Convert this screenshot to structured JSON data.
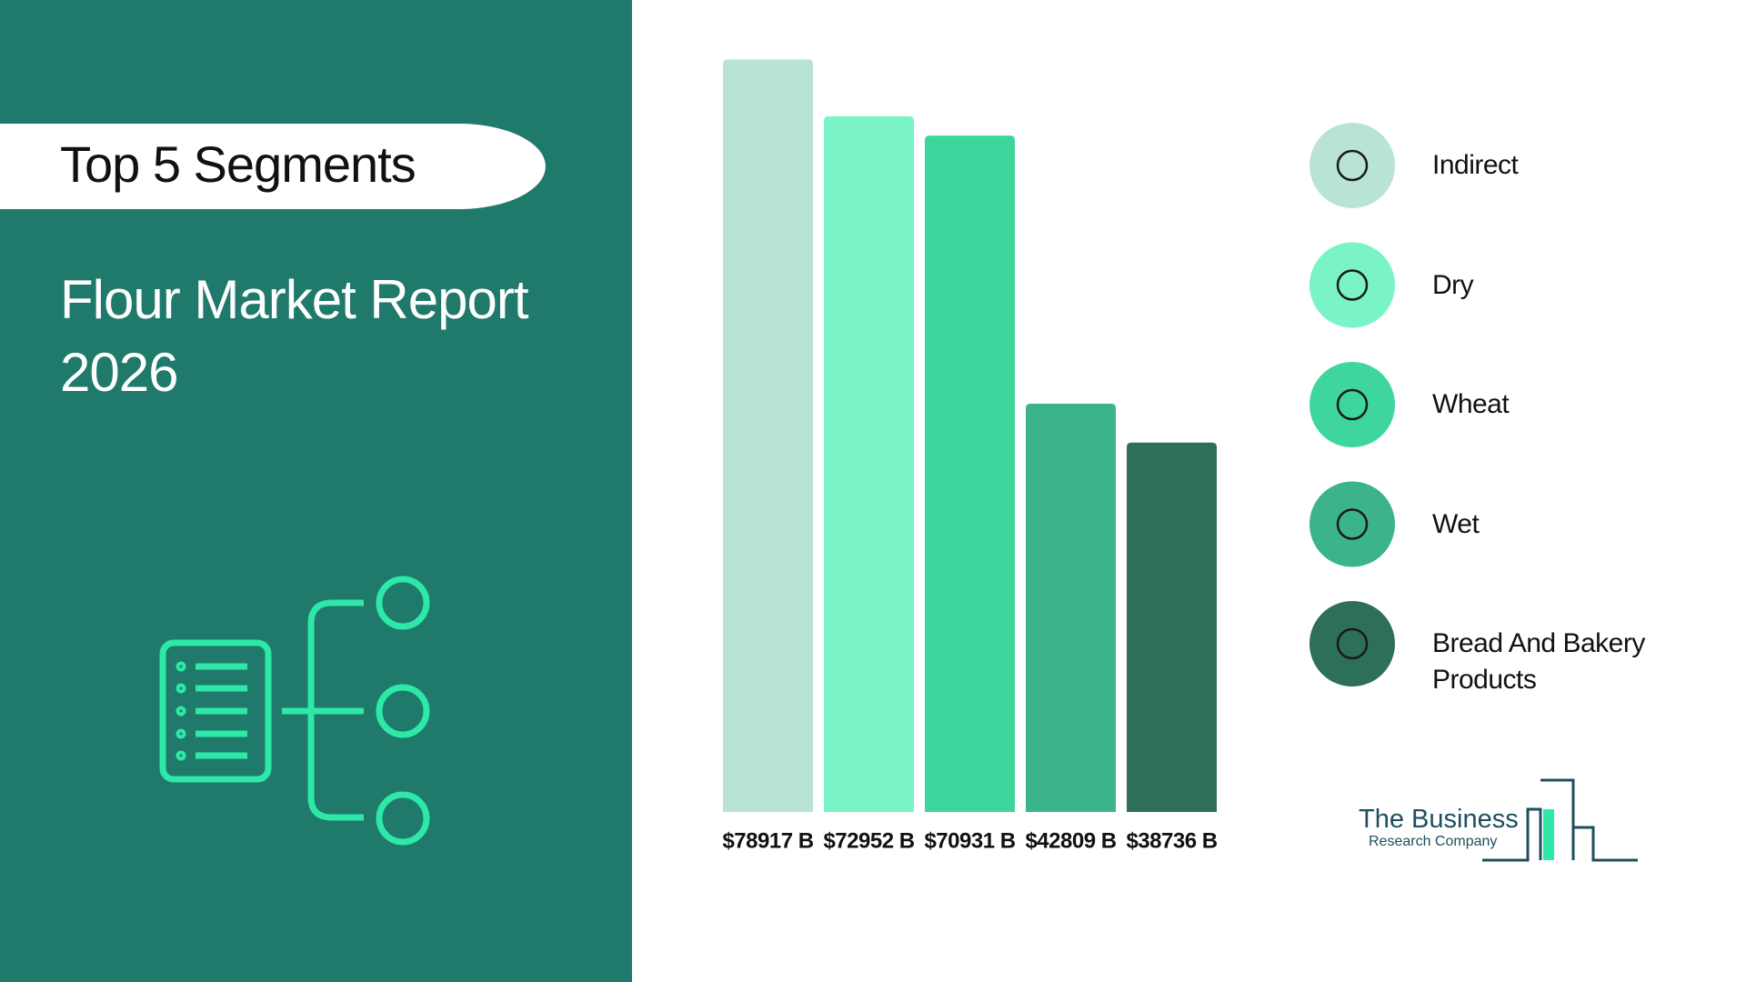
{
  "heading": "Top 5 Segments",
  "logo": {
    "line1": "The Business",
    "line2": "Research Company"
  },
  "chart_data": {
    "type": "bar",
    "title": "Flour Market Report 2026",
    "categories": [
      "Indirect",
      "Dry",
      "Wheat",
      "Wet",
      "Bread And Bakery Products"
    ],
    "values": [
      78917,
      72952,
      70931,
      42809,
      38736
    ],
    "value_labels": [
      "$78917 B",
      "$72952 B",
      "$70931 B",
      "$42809 B",
      "$38736 B"
    ],
    "colors": [
      "#b9e4d4",
      "#7af4c6",
      "#3fd69d",
      "#3cb48a",
      "#2e6f58"
    ],
    "ylim": [
      0,
      80000
    ]
  }
}
